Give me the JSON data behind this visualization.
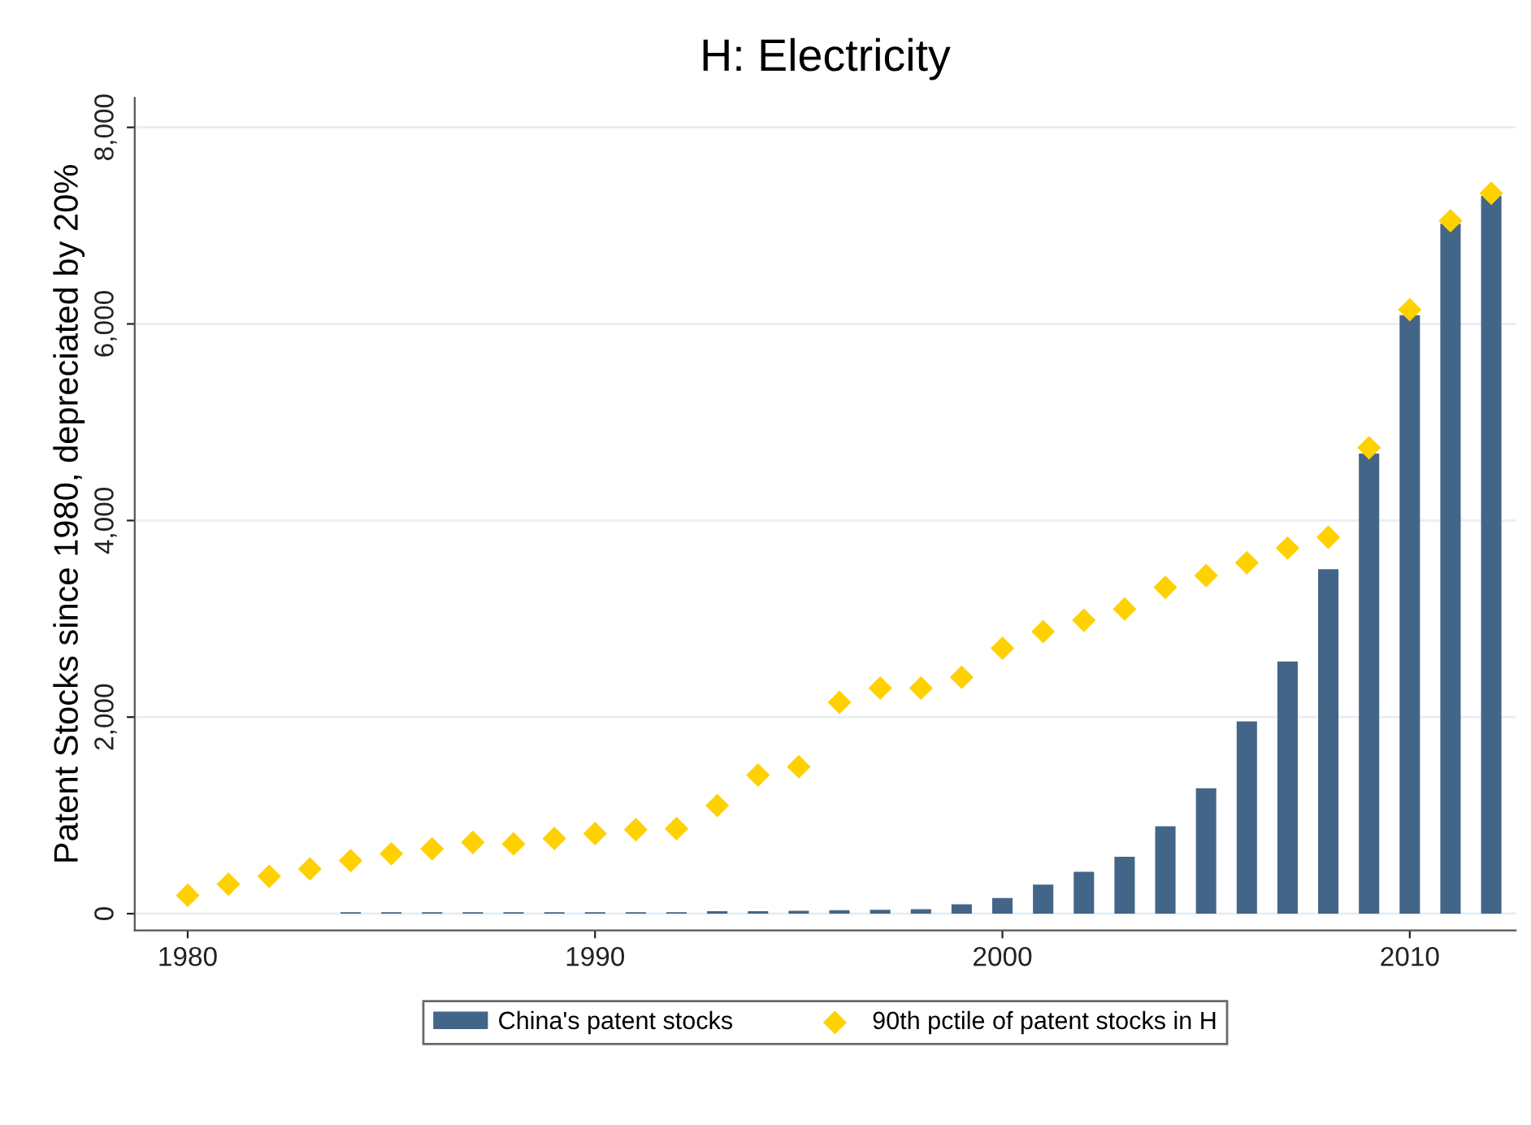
{
  "chart_data": {
    "type": "bar",
    "title": "H: Electricity",
    "ylabel": "Patent Stocks since 1980, depreciated by 20%",
    "x": [
      1980,
      1981,
      1982,
      1983,
      1984,
      1985,
      1986,
      1987,
      1988,
      1989,
      1990,
      1991,
      1992,
      1993,
      1994,
      1995,
      1996,
      1997,
      1998,
      1999,
      2000,
      2001,
      2002,
      2003,
      2004,
      2005,
      2006,
      2007,
      2008,
      2009,
      2010,
      2011,
      2012
    ],
    "series": [
      {
        "name": "China's patent stocks",
        "color": "#436587",
        "values": [
          null,
          null,
          null,
          null,
          15,
          15,
          15,
          15,
          15,
          15,
          15,
          15,
          15,
          25,
          25,
          30,
          35,
          40,
          45,
          95,
          160,
          295,
          425,
          580,
          890,
          1275,
          1955,
          2565,
          3505,
          4680,
          6090,
          7020,
          7305
        ]
      },
      {
        "name": "90th pctile of patent stocks in H",
        "type": "scatter",
        "marker": "diamond",
        "color": "#ffd100",
        "values": [
          187,
          300,
          380,
          455,
          540,
          610,
          660,
          725,
          710,
          765,
          815,
          855,
          865,
          1100,
          1410,
          1495,
          2150,
          2295,
          2295,
          2405,
          2700,
          2870,
          2985,
          3100,
          3320,
          3440,
          3570,
          3720,
          3830,
          4740,
          6145,
          7050,
          7330
        ]
      }
    ],
    "xlim": [
      1978.7,
      2012.6
    ],
    "xticks": [
      1980,
      1990,
      2000,
      2010
    ],
    "ylim": [
      -170,
      8300
    ],
    "yticks": [
      {
        "value": 0,
        "label": "0"
      },
      {
        "value": 2000,
        "label": "2,000"
      },
      {
        "value": 4000,
        "label": "4,000"
      },
      {
        "value": 6000,
        "label": "6,000"
      },
      {
        "value": 8000,
        "label": "8,000"
      }
    ],
    "grid": "y",
    "legend": "bottom"
  }
}
